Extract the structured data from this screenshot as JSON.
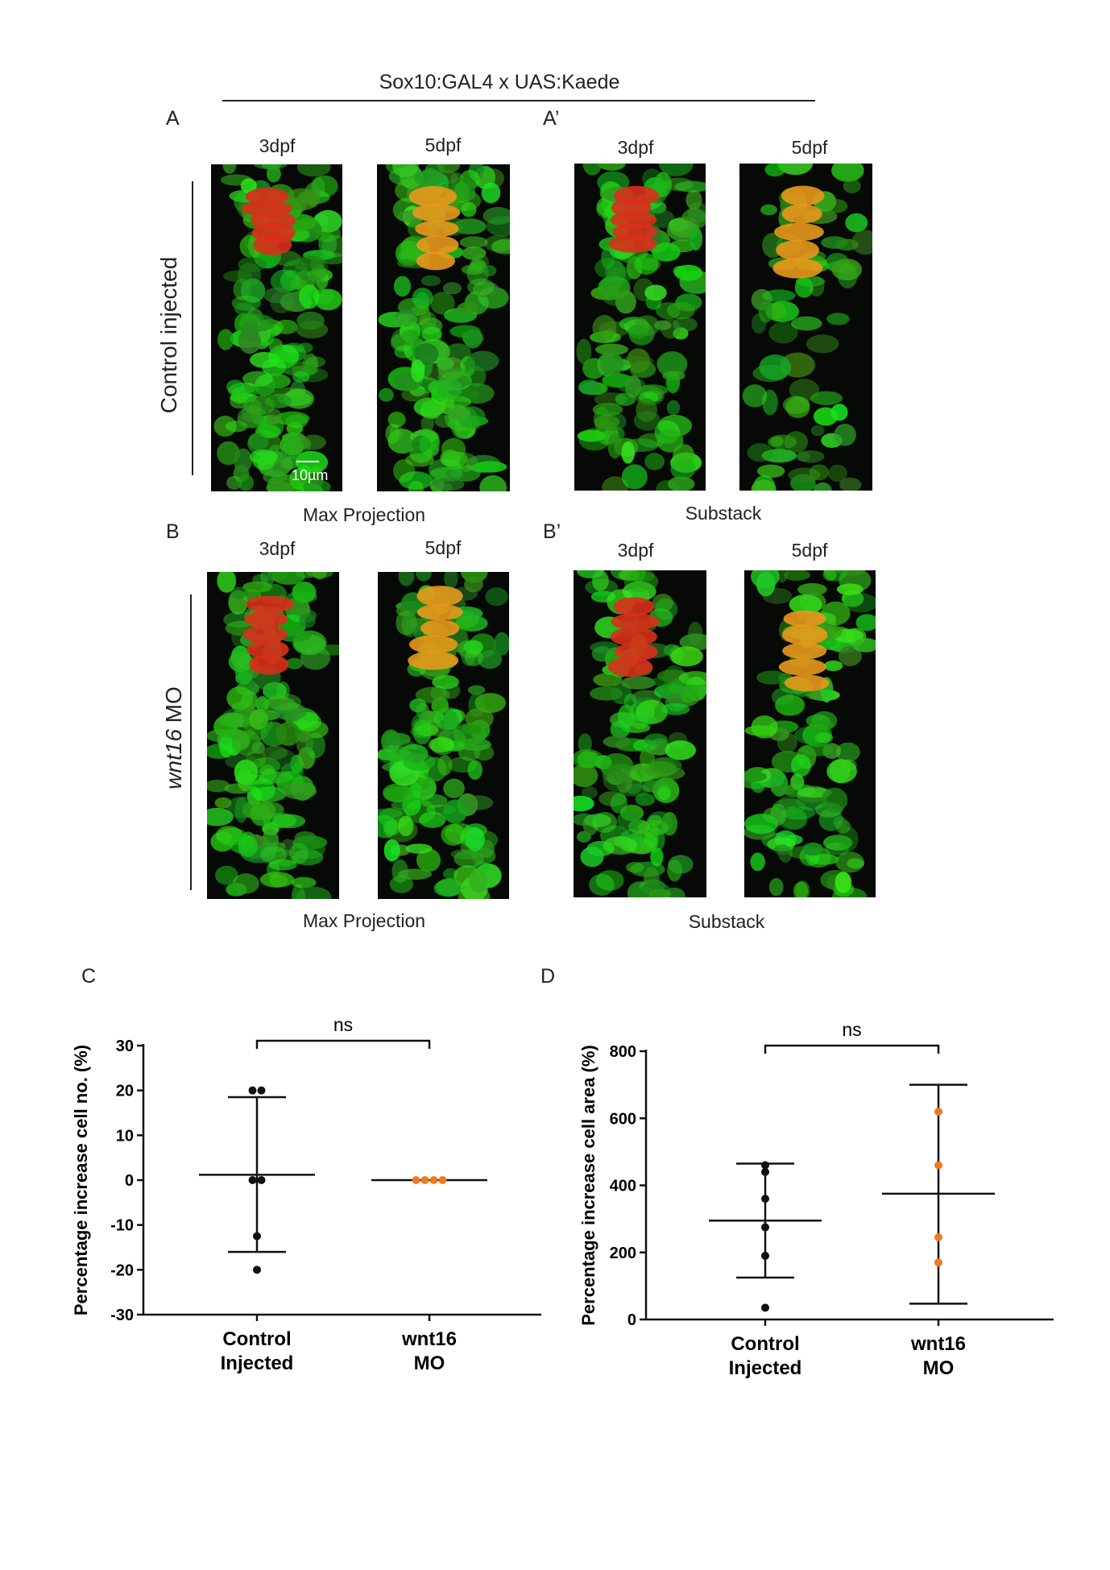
{
  "figure": {
    "title": "Sox10:GAL4 x UAS:Kaede",
    "panels": {
      "A": "A",
      "A_prime": "A’",
      "B": "B",
      "B_prime": "B’",
      "C": "C",
      "D": "D"
    },
    "stages": {
      "early": "3dpf",
      "late": "5dpf"
    },
    "row_labels": {
      "control": "Control injected",
      "mo_gene": "wnt16",
      "mo_suffix": " MO"
    },
    "captions": {
      "max": "Max Projection",
      "sub": "Substack"
    },
    "scale_bar": "10µm",
    "colors": {
      "control_points": "#111111",
      "mo_points": "#f07a1e",
      "green": "#2fb82a",
      "red": "#d8301b",
      "orange": "#e8981c"
    }
  },
  "chart_data": [
    {
      "type": "scatter",
      "panel": "C",
      "ylabel": "Percentage increase cell no. (%)",
      "ylim": [
        -30,
        30
      ],
      "yticks": [
        "30",
        "20",
        "10",
        "0",
        "-10",
        "-20",
        "-30"
      ],
      "categories": [
        "Control\nInjected",
        "wnt16\nMO"
      ],
      "category_lines": [
        [
          "Control",
          "Injected"
        ],
        [
          "wnt16",
          "MO"
        ]
      ],
      "significance": "ns",
      "series": [
        {
          "values": [
            20,
            20,
            0,
            0,
            -12.5,
            -20
          ],
          "mean": 1.2,
          "sd_upper": 18.5,
          "sd_lower": -16
        },
        {
          "values": [
            0,
            0,
            0,
            0
          ],
          "mean": 0,
          "sd_upper": 0,
          "sd_lower": 0
        }
      ]
    },
    {
      "type": "scatter",
      "panel": "D",
      "ylabel": "Percentage increase cell area (%)",
      "ylim": [
        0,
        800
      ],
      "yticks": [
        "800",
        "600",
        "400",
        "200",
        "0"
      ],
      "categories": [
        "Control\nInjected",
        "wnt16\nMO"
      ],
      "category_lines": [
        [
          "Control",
          "Injected"
        ],
        [
          "wnt16",
          "MO"
        ]
      ],
      "significance": "ns",
      "series": [
        {
          "values": [
            460,
            440,
            360,
            275,
            190,
            35
          ],
          "mean": 295,
          "sd_upper": 465,
          "sd_lower": 125
        },
        {
          "values": [
            620,
            460,
            245,
            170
          ],
          "mean": 375,
          "sd_upper": 700,
          "sd_lower": 47
        }
      ]
    }
  ]
}
